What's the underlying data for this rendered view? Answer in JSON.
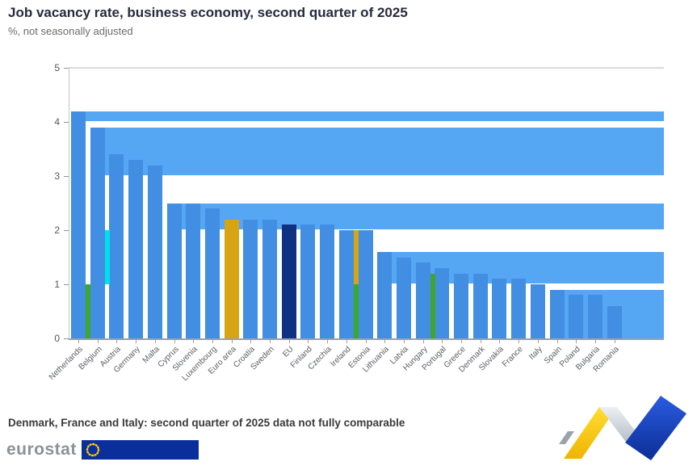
{
  "header": {
    "title": "Job vacancy rate, business economy, second quarter of 2025",
    "subtitle": "%, not seasonally adjusted"
  },
  "chart_data": {
    "type": "bar",
    "title": "Job vacancy rate, business economy, second quarter of 2025",
    "subtitle": "%, not seasonally adjusted",
    "xlabel": "",
    "ylabel": "%",
    "ylim": [
      0,
      5
    ],
    "yticks": [
      0,
      1,
      2,
      3,
      4,
      5
    ],
    "grid": true,
    "legend": false,
    "colors": {
      "country": "#418EE3",
      "flood": "#55A6F3",
      "euro_area": "#D7A413",
      "eu": "#0E3181"
    },
    "bars": [
      {
        "label": "Netherlands",
        "value": 4.2,
        "role": "country"
      },
      {
        "label": "Belgium",
        "value": 3.9,
        "role": "country"
      },
      {
        "label": "Austria",
        "value": 3.4,
        "role": "country"
      },
      {
        "label": "Germany",
        "value": 3.3,
        "role": "country"
      },
      {
        "label": "Malta",
        "value": 3.2,
        "role": "country"
      },
      {
        "label": "Cyprus",
        "value": 2.5,
        "role": "country"
      },
      {
        "label": "Slovenia",
        "value": 2.5,
        "role": "country"
      },
      {
        "label": "Luxembourg",
        "value": 2.4,
        "role": "country"
      },
      {
        "label": "Euro area",
        "value": 2.2,
        "role": "euro_area"
      },
      {
        "label": "Croatia",
        "value": 2.2,
        "role": "country"
      },
      {
        "label": "Sweden",
        "value": 2.2,
        "role": "country"
      },
      {
        "label": "EU",
        "value": 2.1,
        "role": "eu"
      },
      {
        "label": "Finland",
        "value": 2.1,
        "role": "country"
      },
      {
        "label": "Czechia",
        "value": 2.1,
        "role": "country"
      },
      {
        "label": "Ireland",
        "value": 2.0,
        "role": "country"
      },
      {
        "label": "Estonia",
        "value": 2.0,
        "role": "country"
      },
      {
        "label": "Lithuania",
        "value": 1.6,
        "role": "country"
      },
      {
        "label": "Latvia",
        "value": 1.5,
        "role": "country"
      },
      {
        "label": "Hungary",
        "value": 1.4,
        "role": "country"
      },
      {
        "label": "Portugal",
        "value": 1.3,
        "role": "country"
      },
      {
        "label": "Greece",
        "value": 1.2,
        "role": "country"
      },
      {
        "label": "Denmark",
        "value": 1.2,
        "role": "country"
      },
      {
        "label": "Slovakia",
        "value": 1.1,
        "role": "country"
      },
      {
        "label": "France",
        "value": 1.1,
        "role": "country"
      },
      {
        "label": "Italy",
        "value": 1.0,
        "role": "country"
      },
      {
        "label": "Spain",
        "value": 0.9,
        "role": "country"
      },
      {
        "label": "Poland",
        "value": 0.8,
        "role": "country"
      },
      {
        "label": "Bulgaria",
        "value": 0.8,
        "role": "country"
      },
      {
        "label": "Romania",
        "value": 0.6,
        "role": "country"
      }
    ],
    "accent_slivers": [
      {
        "after_index": 0,
        "from": 0,
        "to": 1,
        "color": "#3FA52C"
      },
      {
        "after_index": 1,
        "from": 1,
        "to": 2,
        "color": "#00DFF0"
      },
      {
        "after_index": 14,
        "from": 1,
        "to": 2,
        "color": "#D7A413"
      },
      {
        "after_index": 14,
        "from": 0,
        "to": 1,
        "color": "#3FA52C"
      },
      {
        "after_index": 18,
        "from": 0,
        "to": 1.2,
        "color": "#3FA52C"
      }
    ]
  },
  "footnote": {
    "text": "Denmark, France and Italy: second quarter of 2025 data not fully comparable"
  },
  "branding": {
    "wordmark": "eurostat",
    "flag_color": "#0A2F9C",
    "star_color": "#FFCC00",
    "ribbon_colors": {
      "gray": "#9AA2AD",
      "yellow_top": "#FFDD33",
      "yellow_bottom": "#F0B400",
      "silver_top": "#EDEFF2",
      "silver_bottom": "#B9C0CB",
      "blue_top": "#2A5BE0",
      "blue_bottom": "#0C2E95"
    }
  }
}
